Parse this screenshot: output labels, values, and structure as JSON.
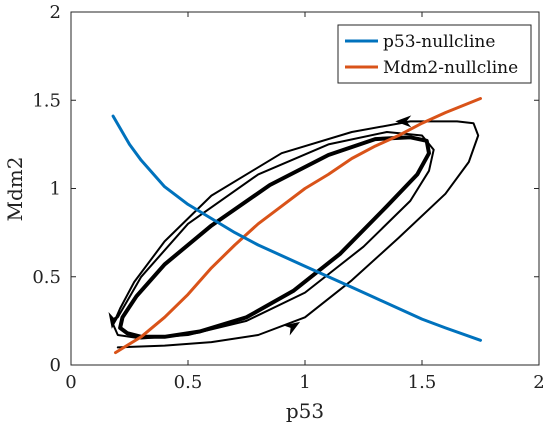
{
  "chart_data": {
    "type": "line",
    "xlabel": "p53",
    "ylabel": "Mdm2",
    "xlim": [
      0,
      2
    ],
    "ylim": [
      0,
      2
    ],
    "xticks": [
      "0",
      "0.5",
      "1",
      "1.5",
      "2"
    ],
    "yticks": [
      "0",
      "0.5",
      "1",
      "1.5",
      "2"
    ],
    "grid": false,
    "legend_position": "top-right",
    "series": [
      {
        "name": "p53-nullcline",
        "color": "#0072BD",
        "x": [
          0.18,
          0.25,
          0.3,
          0.4,
          0.5,
          0.6,
          0.7,
          0.8,
          0.9,
          1.0,
          1.1,
          1.2,
          1.3,
          1.4,
          1.5,
          1.6,
          1.75
        ],
        "y": [
          1.41,
          1.25,
          1.16,
          1.01,
          0.91,
          0.83,
          0.75,
          0.68,
          0.62,
          0.56,
          0.5,
          0.44,
          0.38,
          0.32,
          0.26,
          0.21,
          0.14
        ]
      },
      {
        "name": "Mdm2-nullcline",
        "color": "#D95319",
        "x": [
          0.19,
          0.3,
          0.4,
          0.5,
          0.6,
          0.7,
          0.8,
          0.9,
          1.0,
          1.1,
          1.2,
          1.3,
          1.4,
          1.5,
          1.6,
          1.75
        ],
        "y": [
          0.07,
          0.16,
          0.27,
          0.4,
          0.55,
          0.68,
          0.8,
          0.9,
          1.0,
          1.08,
          1.17,
          1.24,
          1.3,
          1.37,
          1.43,
          1.51
        ]
      },
      {
        "color": "#000000",
        "x": [
          0.2,
          0.4,
          0.6,
          0.8,
          1.0,
          1.2,
          1.4,
          1.6,
          1.7,
          1.74,
          1.72,
          1.65,
          1.45,
          1.2,
          0.9,
          0.6,
          0.4,
          0.27,
          0.21,
          0.18,
          0.2,
          0.3,
          0.5,
          0.75,
          1.0,
          1.25,
          1.45,
          1.53,
          1.55,
          1.5,
          1.35,
          1.1,
          0.8,
          0.5,
          0.3,
          0.2
        ],
        "y": [
          0.1,
          0.11,
          0.13,
          0.17,
          0.27,
          0.48,
          0.72,
          0.97,
          1.15,
          1.3,
          1.37,
          1.38,
          1.38,
          1.32,
          1.2,
          0.96,
          0.7,
          0.47,
          0.32,
          0.23,
          0.17,
          0.15,
          0.17,
          0.25,
          0.41,
          0.67,
          0.93,
          1.1,
          1.22,
          1.3,
          1.32,
          1.25,
          1.08,
          0.8,
          0.5,
          0.27
        ]
      },
      {
        "color": "#000000",
        "x": [
          0.24,
          0.3,
          0.4,
          0.55,
          0.75,
          0.95,
          1.15,
          1.35,
          1.48,
          1.53,
          1.52,
          1.45,
          1.3,
          1.1,
          0.85,
          0.6,
          0.4,
          0.28,
          0.22,
          0.21,
          0.24
        ],
        "y": [
          0.18,
          0.16,
          0.16,
          0.19,
          0.27,
          0.42,
          0.63,
          0.9,
          1.08,
          1.2,
          1.27,
          1.29,
          1.28,
          1.19,
          1.02,
          0.79,
          0.57,
          0.39,
          0.27,
          0.21,
          0.18
        ]
      }
    ],
    "arrows": [
      {
        "x": 0.95,
        "y": 0.22,
        "dx": 0.08,
        "dy": 0.05
      },
      {
        "x": 1.42,
        "y": 1.38,
        "dx": -0.08,
        "dy": 0.0
      },
      {
        "x": 0.18,
        "y": 0.25,
        "dx": -0.01,
        "dy": -0.06
      }
    ]
  }
}
